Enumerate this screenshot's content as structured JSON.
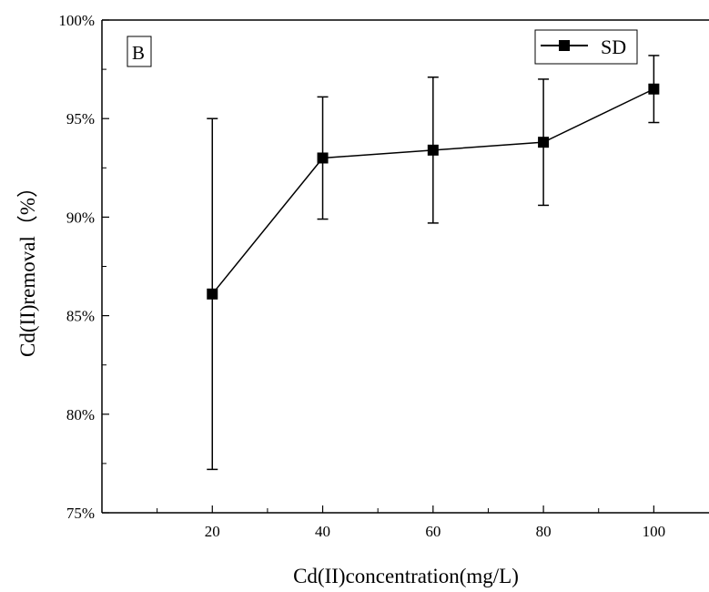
{
  "chart_data": {
    "type": "line",
    "panel_label": "B",
    "xlabel": "Cd(II)concentration(mg/L)",
    "ylabel": "Cd(II)removal（%）",
    "x": [
      20,
      40,
      60,
      80,
      100
    ],
    "xlim": [
      0,
      110
    ],
    "ylim": [
      75,
      100
    ],
    "xticks": [
      20,
      40,
      60,
      80,
      100
    ],
    "xtick_labels": [
      "20",
      "40",
      "60",
      "80",
      "100"
    ],
    "yticks": [
      75,
      80,
      85,
      90,
      95,
      100
    ],
    "ytick_labels": [
      "75%",
      "80%",
      "85%",
      "90%",
      "95%",
      "100%"
    ],
    "grid": false,
    "legend": "top-right",
    "series": [
      {
        "name": "SD",
        "color": "#000000",
        "marker": "square",
        "values": [
          86.1,
          93.0,
          93.4,
          93.8,
          96.5
        ],
        "error": [
          8.9,
          3.1,
          3.7,
          3.2,
          1.7
        ]
      }
    ]
  }
}
